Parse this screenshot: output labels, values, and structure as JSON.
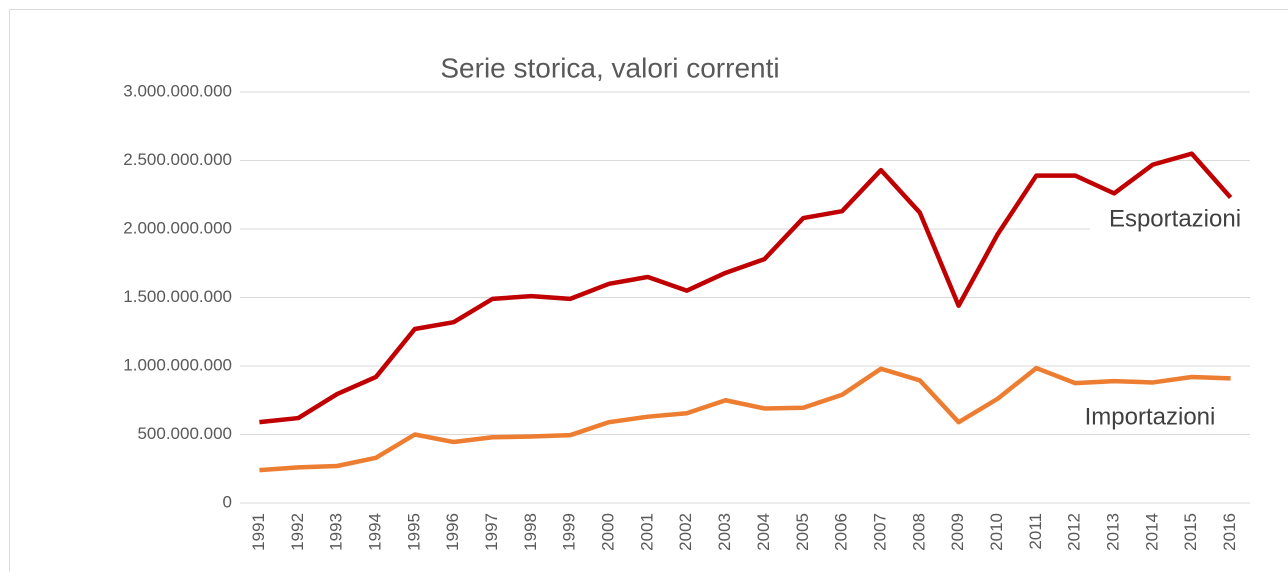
{
  "chart_data": {
    "type": "line",
    "title": "Serie storica, valori correnti",
    "categories": [
      "1991",
      "1992",
      "1993",
      "1994",
      "1995",
      "1996",
      "1997",
      "1998",
      "1999",
      "2000",
      "2001",
      "2002",
      "2003",
      "2004",
      "2005",
      "2006",
      "2007",
      "2008",
      "2009",
      "2010",
      "2011",
      "2012",
      "2013",
      "2014",
      "2015",
      "2016"
    ],
    "series": [
      {
        "name": "Esportazioni",
        "color": "#c00000",
        "values": [
          590000000,
          620000000,
          795000000,
          920000000,
          1270000000,
          1320000000,
          1490000000,
          1510000000,
          1490000000,
          1600000000,
          1650000000,
          1550000000,
          1680000000,
          1780000000,
          2080000000,
          2130000000,
          2430000000,
          2120000000,
          1440000000,
          1960000000,
          2390000000,
          2390000000,
          2260000000,
          2470000000,
          2550000000,
          2230000000
        ]
      },
      {
        "name": "Importazioni",
        "color": "#ed7d31",
        "values": [
          240000000,
          260000000,
          270000000,
          330000000,
          500000000,
          445000000,
          480000000,
          485000000,
          495000000,
          590000000,
          630000000,
          655000000,
          750000000,
          690000000,
          695000000,
          790000000,
          980000000,
          895000000,
          590000000,
          760000000,
          985000000,
          875000000,
          890000000,
          880000000,
          920000000,
          910000000
        ]
      }
    ],
    "ylim": [
      0,
      3000000000
    ],
    "yticks": [
      0,
      {
        "value": 500000000,
        "label": "500.000.000"
      },
      {
        "value": 1000000000,
        "label": "1.000.000.000"
      },
      {
        "value": 1500000000,
        "label": "1.500.000.000"
      },
      {
        "value": 2000000000,
        "label": "2.000.000.000"
      },
      {
        "value": 2500000000,
        "label": "2.500.000.000"
      },
      {
        "value": 3000000000,
        "label": "3.000.000.000"
      }
    ],
    "grid": true
  }
}
